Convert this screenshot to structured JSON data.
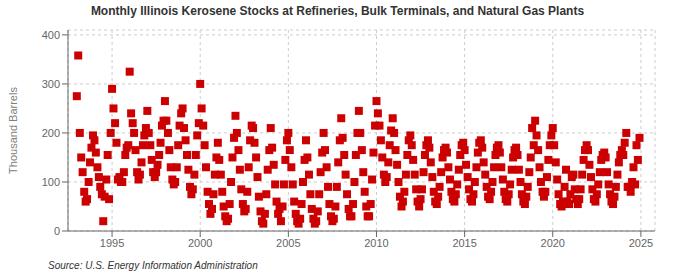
{
  "chart_data": {
    "type": "scatter",
    "title": "Monthly Illinois Kerosene Stocks at Refineries, Bulk Terminals, and Natural Gas Plants",
    "y_label": "Thousand Barrels",
    "annotations": [
      "Source: U.S. Energy Information Administration"
    ],
    "color": "#CC0000",
    "marker": "square",
    "grid": true,
    "xlim": [
      1992.5,
      2025.8
    ],
    "ylim": [
      0,
      410
    ],
    "xticks": [
      1995,
      2000,
      2005,
      2010,
      2015,
      2020,
      2025
    ],
    "yticks": [
      0,
      100,
      200,
      300,
      400
    ],
    "x": [
      1993.0,
      1993.08,
      1993.17,
      1993.25,
      1993.33,
      1993.42,
      1993.5,
      1993.58,
      1993.67,
      1993.75,
      1993.83,
      1993.92,
      1994.0,
      1994.08,
      1994.17,
      1994.25,
      1994.33,
      1994.42,
      1994.5,
      1994.58,
      1994.67,
      1994.75,
      1994.83,
      1994.92,
      1995.0,
      1995.08,
      1995.17,
      1995.25,
      1995.33,
      1995.42,
      1995.5,
      1995.58,
      1995.67,
      1995.75,
      1995.83,
      1995.92,
      1996.0,
      1996.08,
      1996.17,
      1996.25,
      1996.33,
      1996.42,
      1996.5,
      1996.58,
      1996.67,
      1996.75,
      1996.83,
      1996.92,
      1997.0,
      1997.08,
      1997.17,
      1997.25,
      1997.33,
      1997.42,
      1997.5,
      1997.58,
      1997.67,
      1997.75,
      1997.83,
      1997.92,
      1998.0,
      1998.08,
      1998.17,
      1998.25,
      1998.33,
      1998.42,
      1998.5,
      1998.58,
      1998.67,
      1998.75,
      1998.83,
      1998.92,
      1999.0,
      1999.08,
      1999.17,
      1999.25,
      1999.33,
      1999.42,
      1999.5,
      1999.58,
      1999.67,
      1999.75,
      1999.83,
      1999.92,
      2000.0,
      2000.08,
      2000.17,
      2000.25,
      2000.33,
      2000.42,
      2000.5,
      2000.58,
      2000.67,
      2000.75,
      2000.83,
      2000.92,
      2001.0,
      2001.08,
      2001.17,
      2001.25,
      2001.33,
      2001.42,
      2001.5,
      2001.58,
      2001.67,
      2001.75,
      2001.83,
      2001.92,
      2002.0,
      2002.08,
      2002.17,
      2002.25,
      2002.33,
      2002.42,
      2002.5,
      2002.58,
      2002.67,
      2002.75,
      2002.83,
      2002.92,
      2003.0,
      2003.08,
      2003.17,
      2003.25,
      2003.33,
      2003.42,
      2003.5,
      2003.58,
      2003.67,
      2003.75,
      2003.83,
      2003.92,
      2004.0,
      2004.08,
      2004.17,
      2004.25,
      2004.33,
      2004.42,
      2004.5,
      2004.58,
      2004.67,
      2004.75,
      2004.83,
      2004.92,
      2005.0,
      2005.08,
      2005.17,
      2005.25,
      2005.33,
      2005.42,
      2005.5,
      2005.58,
      2005.67,
      2005.75,
      2005.83,
      2005.92,
      2006.0,
      2006.08,
      2006.17,
      2006.25,
      2006.33,
      2006.42,
      2006.5,
      2006.58,
      2006.67,
      2006.75,
      2006.83,
      2006.92,
      2007.0,
      2007.08,
      2007.17,
      2007.25,
      2007.33,
      2007.42,
      2007.5,
      2007.58,
      2007.67,
      2007.75,
      2007.83,
      2007.92,
      2008.0,
      2008.08,
      2008.17,
      2008.25,
      2008.33,
      2008.42,
      2008.5,
      2008.58,
      2008.67,
      2008.75,
      2008.83,
      2008.92,
      2009.0,
      2009.08,
      2009.17,
      2009.25,
      2009.33,
      2009.42,
      2009.5,
      2009.58,
      2009.67,
      2009.75,
      2009.83,
      2009.92,
      2010.0,
      2010.08,
      2010.17,
      2010.25,
      2010.33,
      2010.42,
      2010.5,
      2010.58,
      2010.67,
      2010.75,
      2010.83,
      2010.92,
      2011.0,
      2011.08,
      2011.17,
      2011.25,
      2011.33,
      2011.42,
      2011.5,
      2011.58,
      2011.67,
      2011.75,
      2011.83,
      2011.92,
      2012.0,
      2012.08,
      2012.17,
      2012.25,
      2012.33,
      2012.42,
      2012.5,
      2012.58,
      2012.67,
      2012.75,
      2012.83,
      2012.92,
      2013.0,
      2013.08,
      2013.17,
      2013.25,
      2013.33,
      2013.42,
      2013.5,
      2013.58,
      2013.67,
      2013.75,
      2013.83,
      2013.92,
      2014.0,
      2014.08,
      2014.17,
      2014.25,
      2014.33,
      2014.42,
      2014.5,
      2014.58,
      2014.67,
      2014.75,
      2014.83,
      2014.92,
      2015.0,
      2015.08,
      2015.17,
      2015.25,
      2015.33,
      2015.42,
      2015.5,
      2015.58,
      2015.67,
      2015.75,
      2015.83,
      2015.92,
      2016.0,
      2016.08,
      2016.17,
      2016.25,
      2016.33,
      2016.42,
      2016.5,
      2016.58,
      2016.67,
      2016.75,
      2016.83,
      2016.92,
      2017.0,
      2017.08,
      2017.17,
      2017.25,
      2017.33,
      2017.42,
      2017.5,
      2017.58,
      2017.67,
      2017.75,
      2017.83,
      2017.92,
      2018.0,
      2018.08,
      2018.17,
      2018.25,
      2018.33,
      2018.42,
      2018.5,
      2018.58,
      2018.67,
      2018.75,
      2018.83,
      2018.92,
      2019.0,
      2019.08,
      2019.17,
      2019.25,
      2019.33,
      2019.42,
      2019.5,
      2019.58,
      2019.67,
      2019.75,
      2019.83,
      2019.92,
      2020.0,
      2020.08,
      2020.17,
      2020.25,
      2020.33,
      2020.42,
      2020.5,
      2020.58,
      2020.67,
      2020.75,
      2020.83,
      2020.92,
      2021.0,
      2021.08,
      2021.17,
      2021.25,
      2021.33,
      2021.42,
      2021.5,
      2021.58,
      2021.67,
      2021.75,
      2021.83,
      2021.92,
      2022.0,
      2022.08,
      2022.17,
      2022.25,
      2022.33,
      2022.42,
      2022.5,
      2022.58,
      2022.67,
      2022.75,
      2022.83,
      2022.92,
      2023.0,
      2023.08,
      2023.17,
      2023.25,
      2023.33,
      2023.42,
      2023.5,
      2023.58,
      2023.67,
      2023.75,
      2023.83,
      2023.92,
      2024.0,
      2024.08,
      2024.17,
      2024.25,
      2024.33,
      2024.42,
      2024.5,
      2024.58,
      2024.67,
      2024.75,
      2024.83,
      2024.92
    ],
    "values": [
      275,
      358,
      200,
      150,
      120,
      80,
      60,
      65,
      100,
      140,
      170,
      195,
      185,
      160,
      130,
      110,
      90,
      75,
      20,
      70,
      105,
      155,
      65,
      200,
      290,
      250,
      220,
      180,
      105,
      110,
      100,
      100,
      120,
      155,
      170,
      175,
      325,
      240,
      220,
      200,
      165,
      120,
      105,
      115,
      140,
      175,
      195,
      210,
      245,
      200,
      175,
      145,
      120,
      110,
      120,
      135,
      155,
      180,
      215,
      225,
      265,
      225,
      200,
      165,
      130,
      105,
      95,
      100,
      130,
      175,
      215,
      240,
      250,
      210,
      185,
      155,
      125,
      90,
      75,
      85,
      115,
      155,
      195,
      220,
      300,
      250,
      215,
      175,
      130,
      80,
      55,
      35,
      45,
      75,
      115,
      150,
      180,
      145,
      115,
      80,
      50,
      30,
      20,
      25,
      55,
      100,
      150,
      190,
      235,
      200,
      165,
      125,
      85,
      55,
      40,
      45,
      80,
      130,
      185,
      215,
      210,
      180,
      150,
      110,
      70,
      40,
      20,
      15,
      35,
      75,
      125,
      165,
      210,
      170,
      135,
      95,
      60,
      35,
      45,
      20,
      50,
      95,
      145,
      185,
      200,
      165,
      130,
      95,
      60,
      35,
      20,
      15,
      25,
      55,
      100,
      145,
      185,
      150,
      115,
      75,
      45,
      25,
      15,
      20,
      40,
      75,
      120,
      160,
      200,
      165,
      130,
      90,
      55,
      30,
      20,
      25,
      50,
      90,
      140,
      185,
      230,
      190,
      155,
      115,
      75,
      45,
      30,
      30,
      55,
      100,
      155,
      200,
      245,
      200,
      165,
      120,
      80,
      50,
      30,
      30,
      55,
      105,
      160,
      215,
      265,
      240,
      215,
      185,
      150,
      115,
      100,
      110,
      140,
      175,
      205,
      230,
      200,
      165,
      135,
      100,
      70,
      50,
      60,
      80,
      115,
      155,
      185,
      195,
      175,
      145,
      115,
      85,
      60,
      50,
      65,
      85,
      120,
      155,
      175,
      185,
      170,
      140,
      110,
      80,
      60,
      55,
      70,
      90,
      120,
      150,
      165,
      170,
      160,
      130,
      105,
      80,
      65,
      60,
      75,
      95,
      125,
      155,
      175,
      180,
      165,
      135,
      110,
      85,
      65,
      60,
      75,
      100,
      130,
      160,
      180,
      185,
      170,
      140,
      115,
      90,
      70,
      65,
      80,
      100,
      130,
      155,
      170,
      175,
      160,
      130,
      105,
      80,
      65,
      60,
      75,
      95,
      125,
      150,
      165,
      170,
      155,
      125,
      100,
      75,
      60,
      55,
      70,
      90,
      120,
      150,
      210,
      175,
      225,
      195,
      165,
      130,
      100,
      80,
      70,
      80,
      110,
      145,
      175,
      195,
      210,
      175,
      140,
      105,
      75,
      55,
      50,
      60,
      90,
      125,
      60,
      55,
      75,
      110,
      115,
      85,
      65,
      55,
      65,
      85,
      115,
      145,
      165,
      175,
      165,
      135,
      110,
      85,
      65,
      60,
      75,
      95,
      120,
      145,
      155,
      160,
      150,
      120,
      95,
      75,
      60,
      55,
      70,
      90,
      115,
      140,
      155,
      165,
      155,
      180,
      200,
      90,
      90,
      80,
      100,
      130,
      95,
      175,
      145,
      190
    ]
  }
}
